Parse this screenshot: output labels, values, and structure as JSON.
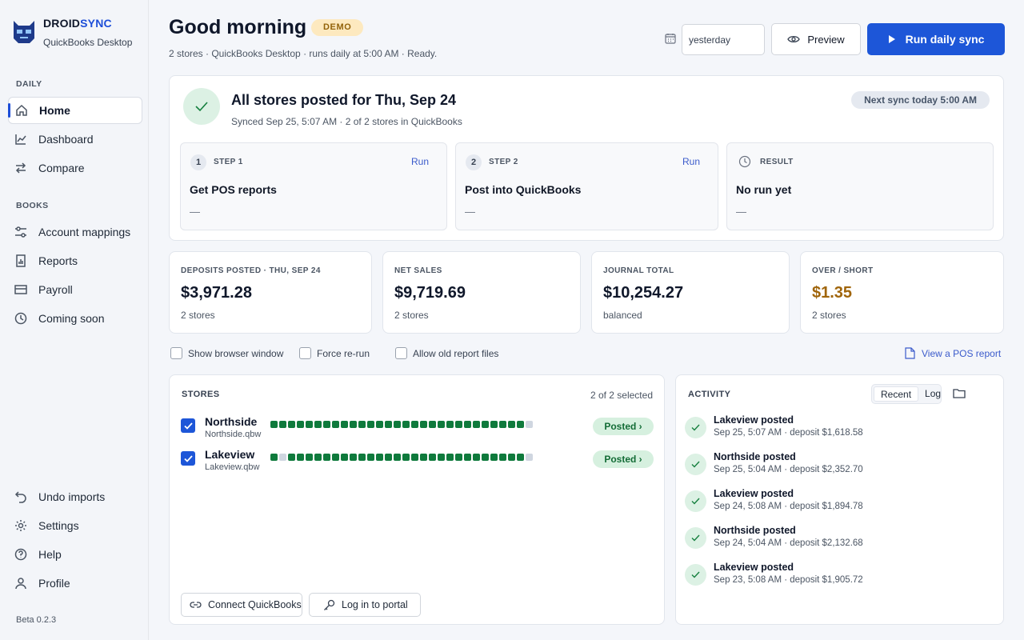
{
  "sidebar": {
    "brand_prefix": "DROID",
    "brand_suffix": "SYNC",
    "brand_sub": "QuickBooks Desktop",
    "daily_heading": "DAILY",
    "books_heading": "BOOKS",
    "items": {
      "home": "Home",
      "dashboard": "Dashboard",
      "compare": "Compare",
      "account_mappings": "Account mappings",
      "reports": "Reports",
      "payroll": "Payroll",
      "coming_soon": "Coming soon",
      "undo_imports": "Undo imports",
      "settings": "Settings",
      "help": "Help",
      "profile": "Profile"
    },
    "version": "Beta 0.2.3"
  },
  "header": {
    "title": "Good morning",
    "badge": "DEMO",
    "subtitle": "2 stores · QuickBooks Desktop · runs daily at 5:00 AM · Ready.",
    "date_value": "yesterday",
    "preview_label": "Preview",
    "run_label": "Run daily sync"
  },
  "status": {
    "title": "All stores posted for Thu, Sep 24",
    "sub": "Synced Sep 25, 5:07 AM · 2 of 2 stores in QuickBooks",
    "next_sync": "Next sync today 5:00 AM",
    "steps": [
      {
        "num": "1",
        "label": "STEP 1",
        "action": "Run",
        "title": "Get POS reports",
        "detail": "—"
      },
      {
        "num": "2",
        "label": "STEP 2",
        "action": "Run",
        "title": "Post into QuickBooks",
        "detail": "—"
      },
      {
        "label": "RESULT",
        "title": "No run yet",
        "detail": "—"
      }
    ]
  },
  "metrics": [
    {
      "label": "DEPOSITS POSTED · THU, SEP 24",
      "value": "$3,971.28",
      "sub": "2 stores"
    },
    {
      "label": "NET SALES",
      "value": "$9,719.69",
      "sub": "2 stores"
    },
    {
      "label": "JOURNAL TOTAL",
      "value": "$10,254.27",
      "sub": "balanced"
    },
    {
      "label": "OVER / SHORT",
      "value": "$1.35",
      "sub": "2 stores"
    }
  ],
  "colors": {
    "accent": "#1d56d8",
    "over_short": "#a0650b",
    "success": "#0f7a3c"
  },
  "options": {
    "show_browser": "Show browser window",
    "force_rerun": "Force re-run",
    "allow_old": "Allow old report files",
    "view_pos_report": "View a POS report"
  },
  "stores": {
    "heading": "STORES",
    "selected": "2 of 2 selected",
    "rows": [
      {
        "name": "Northside",
        "file": "Northside.qbw",
        "status": "Posted ›",
        "history": [
          1,
          1,
          1,
          1,
          1,
          1,
          1,
          1,
          1,
          1,
          1,
          1,
          1,
          1,
          1,
          1,
          1,
          1,
          1,
          1,
          1,
          1,
          1,
          1,
          1,
          1,
          1,
          1,
          1,
          0
        ]
      },
      {
        "name": "Lakeview",
        "file": "Lakeview.qbw",
        "status": "Posted ›",
        "history": [
          1,
          0,
          1,
          1,
          1,
          1,
          1,
          1,
          1,
          1,
          1,
          1,
          1,
          1,
          1,
          1,
          1,
          1,
          1,
          1,
          1,
          1,
          1,
          1,
          1,
          1,
          1,
          1,
          1,
          0
        ]
      }
    ],
    "connect_label": "Connect QuickBooks",
    "portal_label": "Log in to portal"
  },
  "activity": {
    "heading": "ACTIVITY",
    "tab_recent": "Recent",
    "tab_log": "Log",
    "items": [
      {
        "title": "Lakeview posted",
        "meta": "Sep 25, 5:07 AM · deposit $1,618.58"
      },
      {
        "title": "Northside posted",
        "meta": "Sep 25, 5:04 AM · deposit $2,352.70"
      },
      {
        "title": "Lakeview posted",
        "meta": "Sep 24, 5:08 AM · deposit $1,894.78"
      },
      {
        "title": "Northside posted",
        "meta": "Sep 24, 5:04 AM · deposit $2,132.68"
      },
      {
        "title": "Lakeview posted",
        "meta": "Sep 23, 5:08 AM · deposit $1,905.72"
      }
    ]
  }
}
